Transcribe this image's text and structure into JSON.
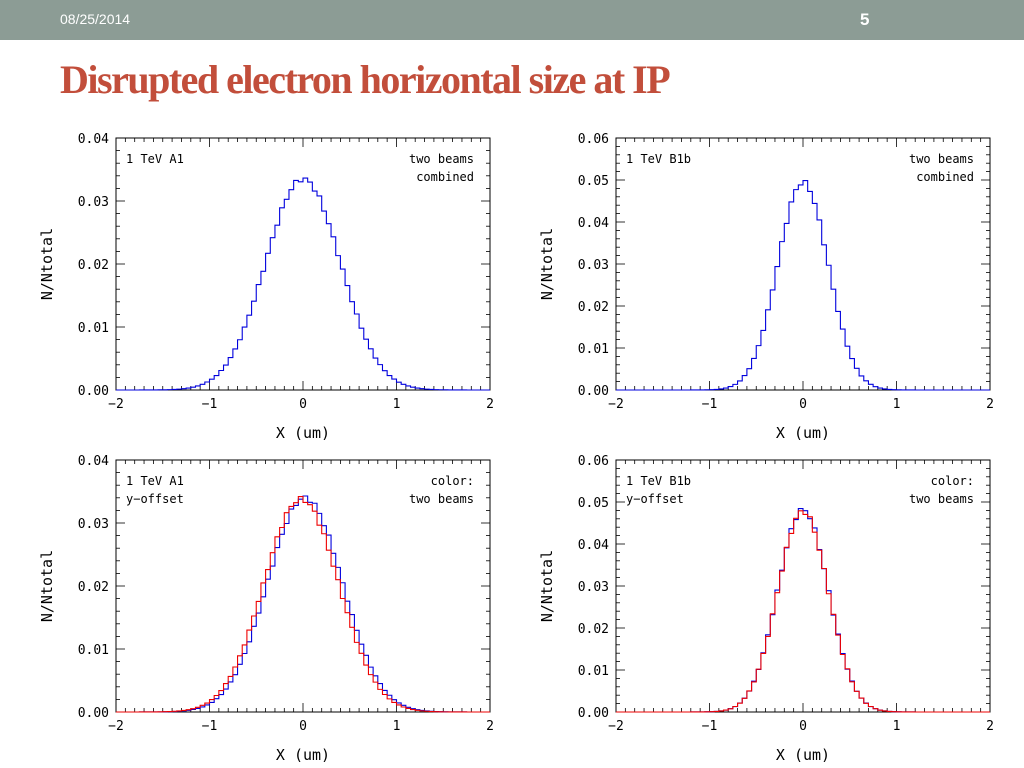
{
  "slide": {
    "date": "08/25/2014",
    "page_number": "5",
    "title": "Disrupted electron horizontal size at IP"
  },
  "colors": {
    "blue": "#0000dd",
    "red": "#ee0000",
    "topbar": "#8c9c95",
    "title": "#c24e3b"
  },
  "chart_data": [
    {
      "type": "line",
      "xlabel": "X (um)",
      "ylabel": "N/Ntotal",
      "xlim": [
        -2,
        2
      ],
      "ylim": [
        0,
        0.04
      ],
      "xticks": [
        "−2",
        "−1",
        "0",
        "1",
        "2"
      ],
      "yticks": [
        "0.00",
        "0.01",
        "0.02",
        "0.03",
        "0.04"
      ],
      "label_left": [
        "1 TeV A1"
      ],
      "label_right": [
        "two beams",
        "combined"
      ],
      "bins": 80,
      "series": [
        {
          "color": "blue",
          "shape": "gaussian",
          "peak": 0.0335,
          "sigma": 0.4,
          "center": 0.0
        }
      ]
    },
    {
      "type": "line",
      "xlabel": "X (um)",
      "ylabel": "N/Ntotal",
      "xlim": [
        -2,
        2
      ],
      "ylim": [
        0,
        0.06
      ],
      "xticks": [
        "−2",
        "−1",
        "0",
        "1",
        "2"
      ],
      "yticks": [
        "0.00",
        "0.01",
        "0.02",
        "0.03",
        "0.04",
        "0.05",
        "0.06"
      ],
      "label_left": [
        "1 TeV B1b"
      ],
      "label_right": [
        "two beams",
        "combined"
      ],
      "bins": 80,
      "series": [
        {
          "color": "blue",
          "shape": "gaussian",
          "peak": 0.0495,
          "sigma": 0.27,
          "center": 0.0
        }
      ]
    },
    {
      "type": "line",
      "xlabel": "X (um)",
      "ylabel": "N/Ntotal",
      "xlim": [
        -2,
        2
      ],
      "ylim": [
        0,
        0.04
      ],
      "xticks": [
        "−2",
        "−1",
        "0",
        "1",
        "2"
      ],
      "yticks": [
        "0.00",
        "0.01",
        "0.02",
        "0.03",
        "0.04"
      ],
      "label_left": [
        "1 TeV A1",
        "y−offset"
      ],
      "label_right": [
        "color:",
        "two beams"
      ],
      "bins": 80,
      "series": [
        {
          "color": "blue",
          "shape": "gaussian",
          "peak": 0.034,
          "sigma": 0.4,
          "center": 0.02
        },
        {
          "color": "red",
          "shape": "gaussian",
          "peak": 0.0338,
          "sigma": 0.4,
          "center": -0.02
        }
      ]
    },
    {
      "type": "line",
      "xlabel": "X (um)",
      "ylabel": "N/Ntotal",
      "xlim": [
        -2,
        2
      ],
      "ylim": [
        0,
        0.06
      ],
      "xticks": [
        "−2",
        "−1",
        "0",
        "1",
        "2"
      ],
      "yticks": [
        "0.00",
        "0.01",
        "0.02",
        "0.03",
        "0.04",
        "0.05",
        "0.06"
      ],
      "label_left": [
        "1 TeV B1b",
        "y−offset"
      ],
      "label_right": [
        "color:",
        "two beams"
      ],
      "bins": 80,
      "series": [
        {
          "color": "blue",
          "shape": "gaussian",
          "peak": 0.0482,
          "sigma": 0.27,
          "center": 0.0
        },
        {
          "color": "red",
          "shape": "gaussian",
          "peak": 0.0478,
          "sigma": 0.27,
          "center": 0.0
        }
      ]
    }
  ]
}
